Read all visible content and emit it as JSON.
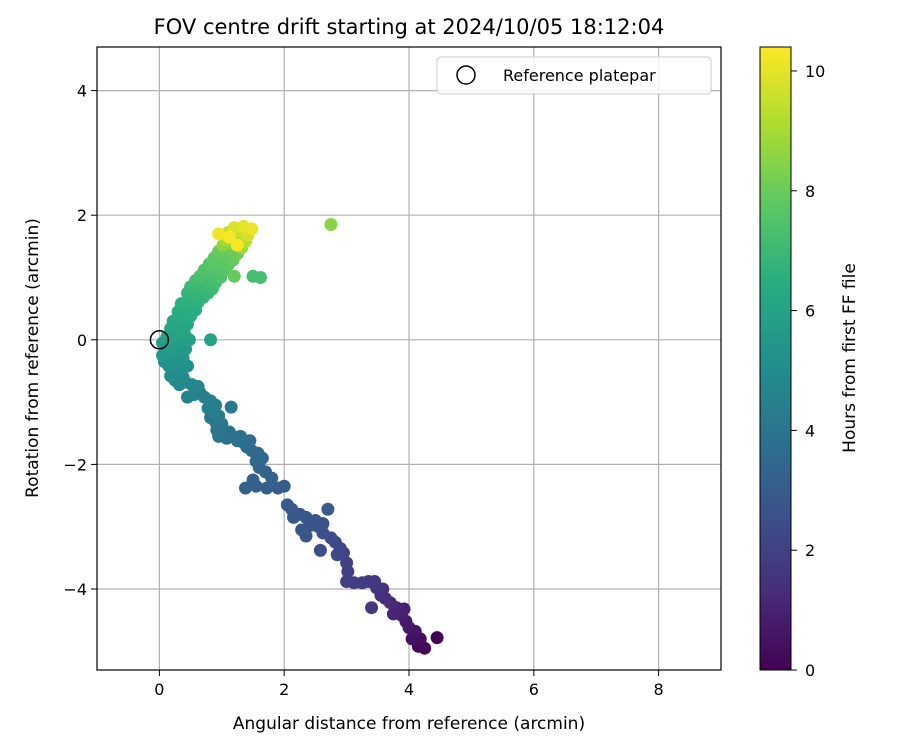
{
  "chart_data": {
    "type": "scatter",
    "title": "FOV centre drift starting at 2024/10/05 18:12:04",
    "xlabel": "Angular distance from reference (arcmin)",
    "ylabel": "Rotation from reference (arcmin)",
    "xlim": [
      -1.0,
      9.0
    ],
    "ylim": [
      -5.3,
      4.7
    ],
    "xticks": [
      0,
      2,
      4,
      6,
      8
    ],
    "yticks": [
      -4,
      -2,
      0,
      2,
      4
    ],
    "xtick_labels": [
      "0",
      "2",
      "4",
      "6",
      "8"
    ],
    "ytick_labels": [
      "−4",
      "−2",
      "0",
      "2",
      "4"
    ],
    "grid": true,
    "colormap": "viridis",
    "colorbar": {
      "label": "Hours from first FF file",
      "range": [
        0,
        10.4
      ],
      "ticks": [
        0,
        2,
        4,
        6,
        8,
        10
      ],
      "tick_labels": [
        "0",
        "2",
        "4",
        "6",
        "8",
        "10"
      ]
    },
    "legend": {
      "position": "upper-right",
      "entries": [
        {
          "label": "Reference platepar",
          "marker": "hollow-circle"
        }
      ]
    },
    "reference_point": {
      "x": 0.0,
      "y": 0.0
    },
    "points": [
      {
        "x": 4.45,
        "y": -4.78,
        "t": 0.05
      },
      {
        "x": 4.25,
        "y": -4.95,
        "t": 0.15
      },
      {
        "x": 4.15,
        "y": -4.92,
        "t": 0.25
      },
      {
        "x": 4.18,
        "y": -4.8,
        "t": 0.35
      },
      {
        "x": 4.05,
        "y": -4.8,
        "t": 0.45
      },
      {
        "x": 4.1,
        "y": -4.68,
        "t": 0.55
      },
      {
        "x": 4.0,
        "y": -4.62,
        "t": 0.65
      },
      {
        "x": 3.95,
        "y": -4.52,
        "t": 0.75
      },
      {
        "x": 3.88,
        "y": -4.42,
        "t": 0.85
      },
      {
        "x": 3.92,
        "y": -4.32,
        "t": 0.95
      },
      {
        "x": 3.8,
        "y": -4.3,
        "t": 1.05
      },
      {
        "x": 3.75,
        "y": -4.4,
        "t": 1.1
      },
      {
        "x": 3.7,
        "y": -4.22,
        "t": 1.2
      },
      {
        "x": 3.62,
        "y": -4.15,
        "t": 1.3
      },
      {
        "x": 3.55,
        "y": -4.1,
        "t": 1.4
      },
      {
        "x": 3.58,
        "y": -4.0,
        "t": 1.5
      },
      {
        "x": 3.48,
        "y": -3.98,
        "t": 1.55
      },
      {
        "x": 3.4,
        "y": -4.3,
        "t": 1.6
      },
      {
        "x": 3.45,
        "y": -3.88,
        "t": 1.7
      },
      {
        "x": 3.35,
        "y": -3.88,
        "t": 1.75
      },
      {
        "x": 3.25,
        "y": -3.9,
        "t": 1.8
      },
      {
        "x": 3.12,
        "y": -3.9,
        "t": 1.85
      },
      {
        "x": 3.0,
        "y": -3.88,
        "t": 1.9
      },
      {
        "x": 3.02,
        "y": -3.72,
        "t": 2.0
      },
      {
        "x": 3.0,
        "y": -3.58,
        "t": 2.05
      },
      {
        "x": 2.95,
        "y": -3.42,
        "t": 2.15
      },
      {
        "x": 2.9,
        "y": -3.35,
        "t": 2.2
      },
      {
        "x": 2.85,
        "y": -3.45,
        "t": 2.25
      },
      {
        "x": 2.82,
        "y": -3.25,
        "t": 2.3
      },
      {
        "x": 2.75,
        "y": -3.18,
        "t": 2.4
      },
      {
        "x": 2.58,
        "y": -3.38,
        "t": 2.45
      },
      {
        "x": 2.62,
        "y": -3.1,
        "t": 2.5
      },
      {
        "x": 2.55,
        "y": -3.0,
        "t": 2.55
      },
      {
        "x": 2.62,
        "y": -2.95,
        "t": 2.6
      },
      {
        "x": 2.5,
        "y": -2.9,
        "t": 2.65
      },
      {
        "x": 2.42,
        "y": -2.98,
        "t": 2.7
      },
      {
        "x": 2.35,
        "y": -3.15,
        "t": 2.72
      },
      {
        "x": 2.28,
        "y": -3.05,
        "t": 2.75
      },
      {
        "x": 2.35,
        "y": -2.85,
        "t": 2.78
      },
      {
        "x": 2.25,
        "y": -2.8,
        "t": 2.8
      },
      {
        "x": 2.15,
        "y": -2.85,
        "t": 2.85
      },
      {
        "x": 2.12,
        "y": -2.72,
        "t": 2.9
      },
      {
        "x": 2.05,
        "y": -2.65,
        "t": 2.95
      },
      {
        "x": 2.7,
        "y": -2.72,
        "t": 2.97
      },
      {
        "x": 2.0,
        "y": -2.35,
        "t": 3.0
      },
      {
        "x": 1.9,
        "y": -2.38,
        "t": 3.05
      },
      {
        "x": 1.72,
        "y": -2.38,
        "t": 3.1
      },
      {
        "x": 1.55,
        "y": -2.35,
        "t": 3.15
      },
      {
        "x": 1.5,
        "y": -2.25,
        "t": 3.2
      },
      {
        "x": 1.38,
        "y": -2.38,
        "t": 3.22
      },
      {
        "x": 1.8,
        "y": -2.22,
        "t": 3.25
      },
      {
        "x": 1.7,
        "y": -2.12,
        "t": 3.3
      },
      {
        "x": 1.6,
        "y": -2.05,
        "t": 3.35
      },
      {
        "x": 1.55,
        "y": -1.95,
        "t": 3.4
      },
      {
        "x": 1.65,
        "y": -1.9,
        "t": 3.45
      },
      {
        "x": 1.58,
        "y": -1.82,
        "t": 3.5
      },
      {
        "x": 1.48,
        "y": -1.78,
        "t": 3.55
      },
      {
        "x": 1.4,
        "y": -1.72,
        "t": 3.6
      },
      {
        "x": 1.45,
        "y": -1.62,
        "t": 3.65
      },
      {
        "x": 1.35,
        "y": -1.65,
        "t": 3.7
      },
      {
        "x": 1.25,
        "y": -1.62,
        "t": 3.75
      },
      {
        "x": 1.3,
        "y": -1.55,
        "t": 3.8
      },
      {
        "x": 1.18,
        "y": -1.55,
        "t": 3.85
      },
      {
        "x": 1.08,
        "y": -1.58,
        "t": 3.9
      },
      {
        "x": 1.12,
        "y": -1.48,
        "t": 3.95
      },
      {
        "x": 0.95,
        "y": -1.55,
        "t": 4.0
      },
      {
        "x": 0.92,
        "y": -1.45,
        "t": 4.05
      },
      {
        "x": 1.0,
        "y": -1.35,
        "t": 4.1
      },
      {
        "x": 1.15,
        "y": -1.08,
        "t": 4.12
      },
      {
        "x": 0.9,
        "y": -1.32,
        "t": 4.15
      },
      {
        "x": 0.82,
        "y": -1.25,
        "t": 4.2
      },
      {
        "x": 0.95,
        "y": -1.22,
        "t": 4.25
      },
      {
        "x": 0.85,
        "y": -1.15,
        "t": 4.3
      },
      {
        "x": 0.78,
        "y": -1.1,
        "t": 4.35
      },
      {
        "x": 0.9,
        "y": -1.05,
        "t": 4.4
      },
      {
        "x": 0.82,
        "y": -0.98,
        "t": 4.45
      },
      {
        "x": 0.72,
        "y": -0.92,
        "t": 4.5
      },
      {
        "x": 0.65,
        "y": -0.85,
        "t": 4.55
      },
      {
        "x": 0.55,
        "y": -0.88,
        "t": 4.6
      },
      {
        "x": 0.45,
        "y": -0.92,
        "t": 4.65
      },
      {
        "x": 0.62,
        "y": -0.75,
        "t": 4.7
      },
      {
        "x": 0.52,
        "y": -0.72,
        "t": 4.75
      },
      {
        "x": 0.42,
        "y": -0.68,
        "t": 4.8
      },
      {
        "x": 0.32,
        "y": -0.72,
        "t": 4.85
      },
      {
        "x": 0.25,
        "y": -0.65,
        "t": 4.9
      },
      {
        "x": 0.38,
        "y": -0.6,
        "t": 4.95
      },
      {
        "x": 0.28,
        "y": -0.55,
        "t": 5.0
      },
      {
        "x": 0.18,
        "y": -0.58,
        "t": 5.05
      },
      {
        "x": 0.22,
        "y": -0.48,
        "t": 5.1
      },
      {
        "x": 0.35,
        "y": -0.45,
        "t": 5.15
      },
      {
        "x": 0.45,
        "y": -0.42,
        "t": 5.2
      },
      {
        "x": 0.15,
        "y": -0.42,
        "t": 5.25
      },
      {
        "x": 0.08,
        "y": -0.35,
        "t": 5.3
      },
      {
        "x": 0.25,
        "y": -0.35,
        "t": 5.35
      },
      {
        "x": 0.38,
        "y": -0.3,
        "t": 5.4
      },
      {
        "x": 0.05,
        "y": -0.25,
        "t": 5.45
      },
      {
        "x": 0.15,
        "y": -0.22,
        "t": 5.5
      },
      {
        "x": 0.28,
        "y": -0.18,
        "t": 5.55
      },
      {
        "x": 0.42,
        "y": -0.15,
        "t": 5.6
      },
      {
        "x": 0.1,
        "y": -0.12,
        "t": 5.65
      },
      {
        "x": 0.05,
        "y": -0.05,
        "t": 5.7
      },
      {
        "x": 0.2,
        "y": -0.05,
        "t": 5.75
      },
      {
        "x": 0.35,
        "y": -0.02,
        "t": 5.8
      },
      {
        "x": 0.48,
        "y": 0.0,
        "t": 5.85
      },
      {
        "x": 0.82,
        "y": 0.0,
        "t": 5.9
      },
      {
        "x": 0.12,
        "y": 0.05,
        "t": 5.95
      },
      {
        "x": 0.25,
        "y": 0.08,
        "t": 6.0
      },
      {
        "x": 0.4,
        "y": 0.1,
        "t": 6.05
      },
      {
        "x": 0.18,
        "y": 0.18,
        "t": 6.1
      },
      {
        "x": 0.3,
        "y": 0.22,
        "t": 6.15
      },
      {
        "x": 0.45,
        "y": 0.25,
        "t": 6.2
      },
      {
        "x": 0.22,
        "y": 0.3,
        "t": 6.25
      },
      {
        "x": 0.35,
        "y": 0.35,
        "t": 6.3
      },
      {
        "x": 0.5,
        "y": 0.38,
        "t": 6.35
      },
      {
        "x": 0.3,
        "y": 0.45,
        "t": 6.4
      },
      {
        "x": 0.42,
        "y": 0.5,
        "t": 6.45
      },
      {
        "x": 0.58,
        "y": 0.48,
        "t": 6.5
      },
      {
        "x": 0.35,
        "y": 0.58,
        "t": 6.55
      },
      {
        "x": 0.48,
        "y": 0.62,
        "t": 6.6
      },
      {
        "x": 0.62,
        "y": 0.6,
        "t": 6.65
      },
      {
        "x": 0.55,
        "y": 0.7,
        "t": 6.7
      },
      {
        "x": 0.7,
        "y": 0.68,
        "t": 6.75
      },
      {
        "x": 0.45,
        "y": 0.75,
        "t": 6.8
      },
      {
        "x": 0.62,
        "y": 0.78,
        "t": 6.85
      },
      {
        "x": 0.78,
        "y": 0.75,
        "t": 6.9
      },
      {
        "x": 0.5,
        "y": 0.85,
        "t": 6.95
      },
      {
        "x": 0.68,
        "y": 0.88,
        "t": 7.0
      },
      {
        "x": 0.85,
        "y": 0.82,
        "t": 7.05
      },
      {
        "x": 0.58,
        "y": 0.95,
        "t": 7.1
      },
      {
        "x": 0.75,
        "y": 0.95,
        "t": 7.15
      },
      {
        "x": 0.9,
        "y": 0.92,
        "t": 7.2
      },
      {
        "x": 1.5,
        "y": 1.02,
        "t": 7.22
      },
      {
        "x": 1.62,
        "y": 1.0,
        "t": 7.25
      },
      {
        "x": 0.65,
        "y": 1.02,
        "t": 7.3
      },
      {
        "x": 0.82,
        "y": 1.05,
        "t": 7.35
      },
      {
        "x": 0.98,
        "y": 1.0,
        "t": 7.4
      },
      {
        "x": 0.72,
        "y": 1.12,
        "t": 7.45
      },
      {
        "x": 0.88,
        "y": 1.15,
        "t": 7.5
      },
      {
        "x": 1.02,
        "y": 1.1,
        "t": 7.55
      },
      {
        "x": 0.8,
        "y": 1.22,
        "t": 7.6
      },
      {
        "x": 0.95,
        "y": 1.25,
        "t": 7.65
      },
      {
        "x": 1.1,
        "y": 1.2,
        "t": 7.7
      },
      {
        "x": 0.88,
        "y": 1.32,
        "t": 7.75
      },
      {
        "x": 1.05,
        "y": 1.35,
        "t": 7.8
      },
      {
        "x": 1.18,
        "y": 1.28,
        "t": 7.85
      },
      {
        "x": 1.2,
        "y": 1.02,
        "t": 7.9
      },
      {
        "x": 0.95,
        "y": 1.42,
        "t": 7.95
      },
      {
        "x": 1.12,
        "y": 1.45,
        "t": 8.0
      },
      {
        "x": 1.25,
        "y": 1.38,
        "t": 8.05
      },
      {
        "x": 2.75,
        "y": 1.85,
        "t": 8.5
      },
      {
        "x": 1.02,
        "y": 1.52,
        "t": 8.6
      },
      {
        "x": 1.18,
        "y": 1.55,
        "t": 8.7
      },
      {
        "x": 1.32,
        "y": 1.48,
        "t": 8.8
      },
      {
        "x": 1.05,
        "y": 1.62,
        "t": 9.0
      },
      {
        "x": 1.22,
        "y": 1.65,
        "t": 9.1
      },
      {
        "x": 1.38,
        "y": 1.58,
        "t": 9.2
      },
      {
        "x": 1.1,
        "y": 1.72,
        "t": 9.4
      },
      {
        "x": 1.28,
        "y": 1.75,
        "t": 9.55
      },
      {
        "x": 1.42,
        "y": 1.68,
        "t": 9.7
      },
      {
        "x": 1.2,
        "y": 1.8,
        "t": 9.85
      },
      {
        "x": 1.35,
        "y": 1.82,
        "t": 10.0
      },
      {
        "x": 1.48,
        "y": 1.78,
        "t": 10.1
      },
      {
        "x": 0.95,
        "y": 1.7,
        "t": 10.2
      },
      {
        "x": 1.12,
        "y": 1.65,
        "t": 10.3
      },
      {
        "x": 1.25,
        "y": 1.52,
        "t": 10.35
      }
    ]
  }
}
